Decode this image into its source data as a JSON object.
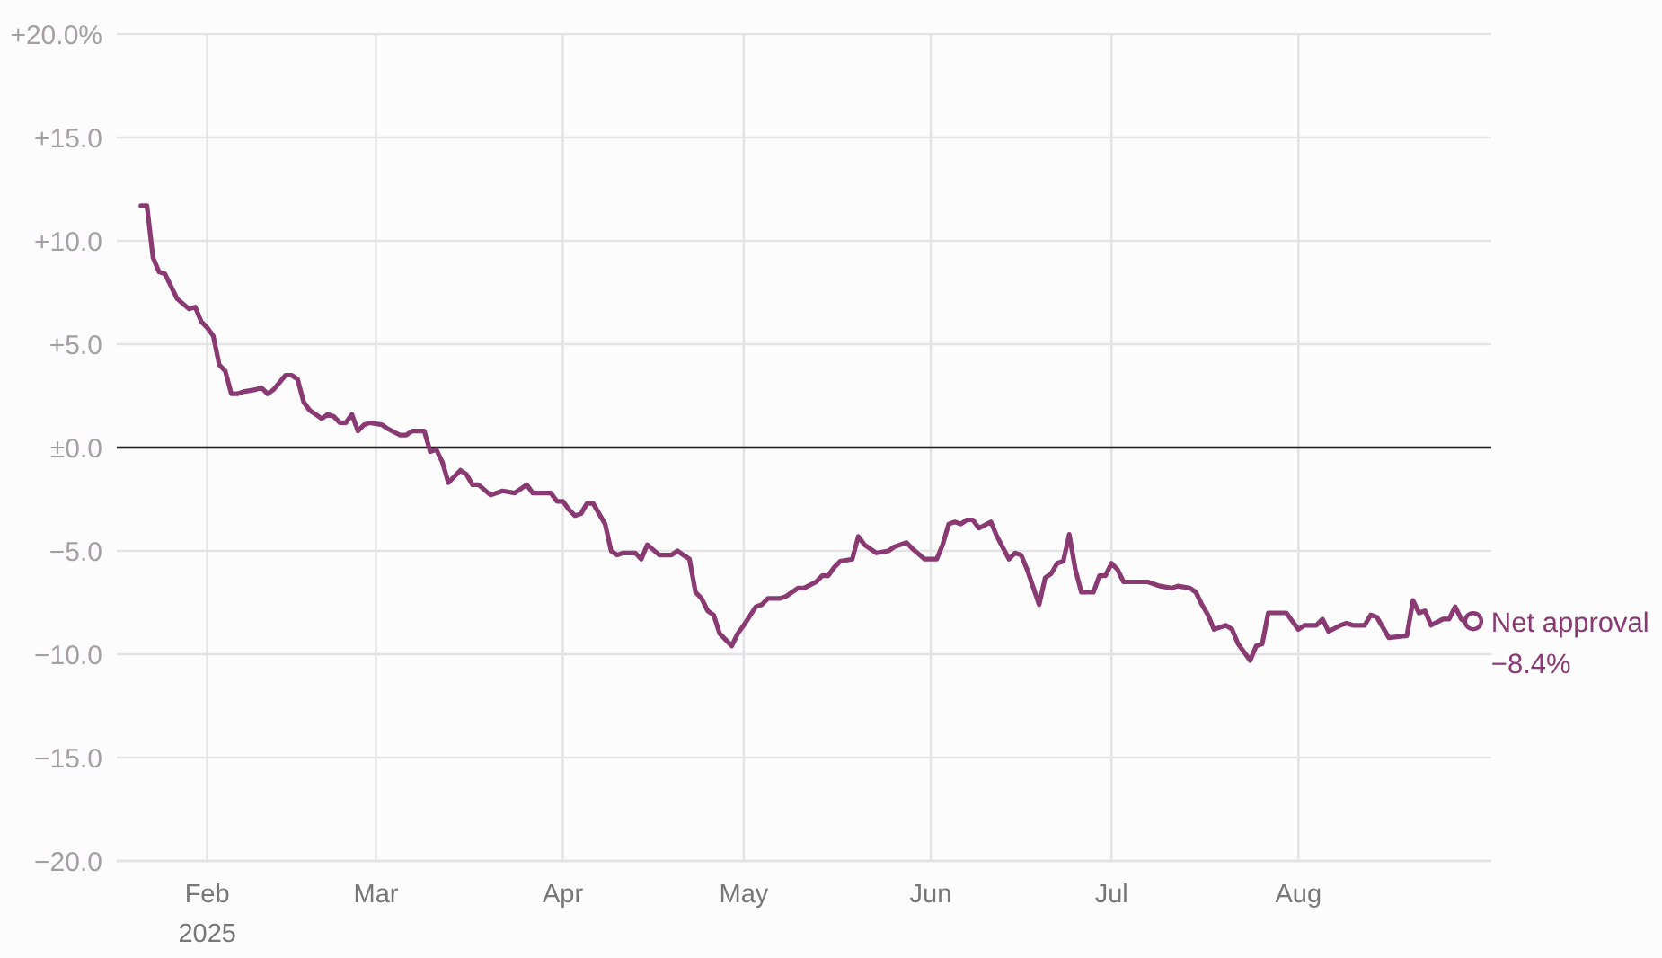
{
  "chart_data": {
    "type": "line",
    "xlim": [
      "2025-01-17",
      "2025-09-02"
    ],
    "xticks": [
      {
        "value": "2025-02-01",
        "label": "Feb\n2025"
      },
      {
        "value": "2025-03-01",
        "label": "Mar"
      },
      {
        "value": "2025-04-01",
        "label": "Apr"
      },
      {
        "value": "2025-05-01",
        "label": "May"
      },
      {
        "value": "2025-06-01",
        "label": "Jun"
      },
      {
        "value": "2025-07-01",
        "label": "Jul"
      },
      {
        "value": "2025-08-01",
        "label": "Aug"
      }
    ],
    "ylim": [
      -20,
      20
    ],
    "yticks": [
      {
        "value": 20,
        "label": "+20.0%"
      },
      {
        "value": 15,
        "label": "+15.0"
      },
      {
        "value": 10,
        "label": "+10.0"
      },
      {
        "value": 5,
        "label": "+5.0"
      },
      {
        "value": 0,
        "label": "±0.0"
      },
      {
        "value": -5,
        "label": "−5.0"
      },
      {
        "value": -10,
        "label": "−10.0"
      },
      {
        "value": -15,
        "label": "−15.0"
      },
      {
        "value": -20,
        "label": "−20.0"
      }
    ],
    "grid": true,
    "ref_lines": [
      {
        "axis": "y",
        "value": 0,
        "color": "#222222"
      }
    ],
    "series": [
      {
        "name": "Net approval",
        "color": "#8a3a72",
        "x": [
          "2025-01-21",
          "2025-01-22",
          "2025-01-23",
          "2025-01-24",
          "2025-01-25",
          "2025-01-27",
          "2025-01-29",
          "2025-01-30",
          "2025-01-31",
          "2025-02-01",
          "2025-02-02",
          "2025-02-03",
          "2025-02-04",
          "2025-02-05",
          "2025-02-06",
          "2025-02-07",
          "2025-02-09",
          "2025-02-10",
          "2025-02-11",
          "2025-02-12",
          "2025-02-14",
          "2025-02-15",
          "2025-02-16",
          "2025-02-17",
          "2025-02-18",
          "2025-02-19",
          "2025-02-20",
          "2025-02-21",
          "2025-02-22",
          "2025-02-23",
          "2025-02-24",
          "2025-02-25",
          "2025-02-26",
          "2025-02-27",
          "2025-02-28",
          "2025-03-02",
          "2025-03-03",
          "2025-03-05",
          "2025-03-06",
          "2025-03-07",
          "2025-03-09",
          "2025-03-10",
          "2025-03-11",
          "2025-03-12",
          "2025-03-13",
          "2025-03-15",
          "2025-03-16",
          "2025-03-17",
          "2025-03-18",
          "2025-03-20",
          "2025-03-22",
          "2025-03-24",
          "2025-03-26",
          "2025-03-27",
          "2025-03-30",
          "2025-03-31",
          "2025-04-01",
          "2025-04-02",
          "2025-04-03",
          "2025-04-04",
          "2025-04-05",
          "2025-04-06",
          "2025-04-08",
          "2025-04-09",
          "2025-04-10",
          "2025-04-11",
          "2025-04-13",
          "2025-04-14",
          "2025-04-15",
          "2025-04-17",
          "2025-04-19",
          "2025-04-20",
          "2025-04-22",
          "2025-04-23",
          "2025-04-24",
          "2025-04-25",
          "2025-04-26",
          "2025-04-27",
          "2025-04-28",
          "2025-04-29",
          "2025-04-30",
          "2025-05-01",
          "2025-05-03",
          "2025-05-04",
          "2025-05-05",
          "2025-05-07",
          "2025-05-08",
          "2025-05-10",
          "2025-05-11",
          "2025-05-13",
          "2025-05-14",
          "2025-05-15",
          "2025-05-16",
          "2025-05-17",
          "2025-05-19",
          "2025-05-20",
          "2025-05-21",
          "2025-05-23",
          "2025-05-25",
          "2025-05-26",
          "2025-05-28",
          "2025-05-29",
          "2025-05-31",
          "2025-06-02",
          "2025-06-03",
          "2025-06-04",
          "2025-06-05",
          "2025-06-06",
          "2025-06-07",
          "2025-06-08",
          "2025-06-09",
          "2025-06-11",
          "2025-06-12",
          "2025-06-14",
          "2025-06-15",
          "2025-06-16",
          "2025-06-17",
          "2025-06-19",
          "2025-06-20",
          "2025-06-21",
          "2025-06-22",
          "2025-06-23",
          "2025-06-24",
          "2025-06-25",
          "2025-06-26",
          "2025-06-28",
          "2025-06-29",
          "2025-06-30",
          "2025-07-01",
          "2025-07-02",
          "2025-07-03",
          "2025-07-05",
          "2025-07-07",
          "2025-07-09",
          "2025-07-11",
          "2025-07-12",
          "2025-07-14",
          "2025-07-15",
          "2025-07-16",
          "2025-07-17",
          "2025-07-18",
          "2025-07-20",
          "2025-07-21",
          "2025-07-22",
          "2025-07-24",
          "2025-07-25",
          "2025-07-26",
          "2025-07-27",
          "2025-07-30",
          "2025-07-31",
          "2025-08-01",
          "2025-08-02",
          "2025-08-04",
          "2025-08-05",
          "2025-08-06",
          "2025-08-08",
          "2025-08-09",
          "2025-08-10",
          "2025-08-12",
          "2025-08-13",
          "2025-08-14",
          "2025-08-16",
          "2025-08-19",
          "2025-08-20",
          "2025-08-21",
          "2025-08-22",
          "2025-08-23",
          "2025-08-25",
          "2025-08-26",
          "2025-08-27",
          "2025-08-28",
          "2025-08-29",
          "2025-08-30"
        ],
        "values": [
          11.7,
          11.7,
          9.2,
          8.5,
          8.4,
          7.2,
          6.7,
          6.8,
          6.1,
          5.8,
          5.4,
          4.0,
          3.7,
          2.6,
          2.6,
          2.7,
          2.8,
          2.9,
          2.6,
          2.8,
          3.5,
          3.5,
          3.3,
          2.2,
          1.8,
          1.6,
          1.4,
          1.6,
          1.5,
          1.2,
          1.2,
          1.6,
          0.8,
          1.1,
          1.2,
          1.1,
          0.9,
          0.6,
          0.6,
          0.8,
          0.8,
          -0.2,
          -0.1,
          -0.7,
          -1.7,
          -1.1,
          -1.3,
          -1.8,
          -1.8,
          -2.3,
          -2.1,
          -2.2,
          -1.8,
          -2.2,
          -2.2,
          -2.6,
          -2.6,
          -3.0,
          -3.3,
          -3.2,
          -2.7,
          -2.7,
          -3.7,
          -5.0,
          -5.2,
          -5.1,
          -5.1,
          -5.4,
          -4.7,
          -5.2,
          -5.2,
          -5.0,
          -5.4,
          -7.0,
          -7.3,
          -7.9,
          -8.1,
          -9.0,
          -9.3,
          -9.6,
          -9.0,
          -8.6,
          -7.7,
          -7.6,
          -7.3,
          -7.3,
          -7.2,
          -6.8,
          -6.8,
          -6.5,
          -6.2,
          -6.2,
          -5.8,
          -5.5,
          -5.4,
          -4.3,
          -4.7,
          -5.1,
          -5.0,
          -4.8,
          -4.6,
          -4.9,
          -5.4,
          -5.4,
          -4.7,
          -3.7,
          -3.6,
          -3.7,
          -3.5,
          -3.5,
          -3.9,
          -3.6,
          -4.3,
          -5.4,
          -5.1,
          -5.2,
          -5.9,
          -7.6,
          -6.3,
          -6.1,
          -5.6,
          -5.5,
          -4.2,
          -5.9,
          -7.0,
          -7.0,
          -6.2,
          -6.2,
          -5.6,
          -5.9,
          -6.5,
          -6.5,
          -6.5,
          -6.7,
          -6.8,
          -6.7,
          -6.8,
          -7.0,
          -7.6,
          -8.1,
          -8.8,
          -8.6,
          -8.8,
          -9.5,
          -10.3,
          -9.6,
          -9.5,
          -8.0,
          -8.0,
          -8.4,
          -8.8,
          -8.6,
          -8.6,
          -8.3,
          -8.9,
          -8.6,
          -8.5,
          -8.6,
          -8.6,
          -8.1,
          -8.2,
          -9.2,
          -9.1,
          -7.4,
          -8.0,
          -7.9,
          -8.6,
          -8.3,
          -8.3,
          -7.7,
          -8.3,
          -8.5,
          -8.4
        ],
        "value_labels": [
          null,
          null,
          null,
          null,
          null,
          null,
          null,
          null,
          null,
          null,
          null,
          null,
          null,
          null,
          null,
          null,
          null,
          null,
          null,
          null,
          null,
          null,
          null,
          null,
          null,
          null,
          null,
          null,
          null,
          null,
          null,
          null,
          null,
          null,
          null,
          null,
          null,
          null,
          null,
          null,
          null,
          null,
          null,
          null,
          null,
          null,
          null,
          null,
          null,
          null,
          null,
          null,
          null,
          null,
          null,
          null,
          null,
          null,
          null,
          null,
          null,
          null,
          null,
          null,
          null,
          null,
          null,
          null,
          null,
          null,
          null,
          null,
          null,
          null,
          null,
          null,
          null,
          null,
          null,
          null,
          null,
          null,
          null,
          null,
          null,
          null,
          null,
          null,
          null,
          null,
          null,
          null,
          null,
          null,
          null,
          null,
          null,
          null,
          null,
          null,
          null,
          null,
          null,
          null,
          null,
          null,
          null,
          null,
          null,
          null,
          null,
          null,
          null,
          null,
          null,
          null,
          null,
          null,
          null,
          null,
          null,
          null,
          null,
          null,
          null,
          null,
          null,
          null,
          null,
          null,
          null,
          null,
          null,
          null,
          null,
          null,
          null,
          null,
          null,
          null,
          null,
          null,
          null,
          null,
          null,
          null,
          null,
          null,
          null,
          null,
          null,
          null,
          null,
          null,
          null,
          null,
          null,
          null,
          null,
          null,
          null,
          null,
          null,
          null,
          null,
          null,
          null,
          null,
          null,
          null,
          null,
          null,
          "−8.4%"
        ]
      }
    ]
  }
}
